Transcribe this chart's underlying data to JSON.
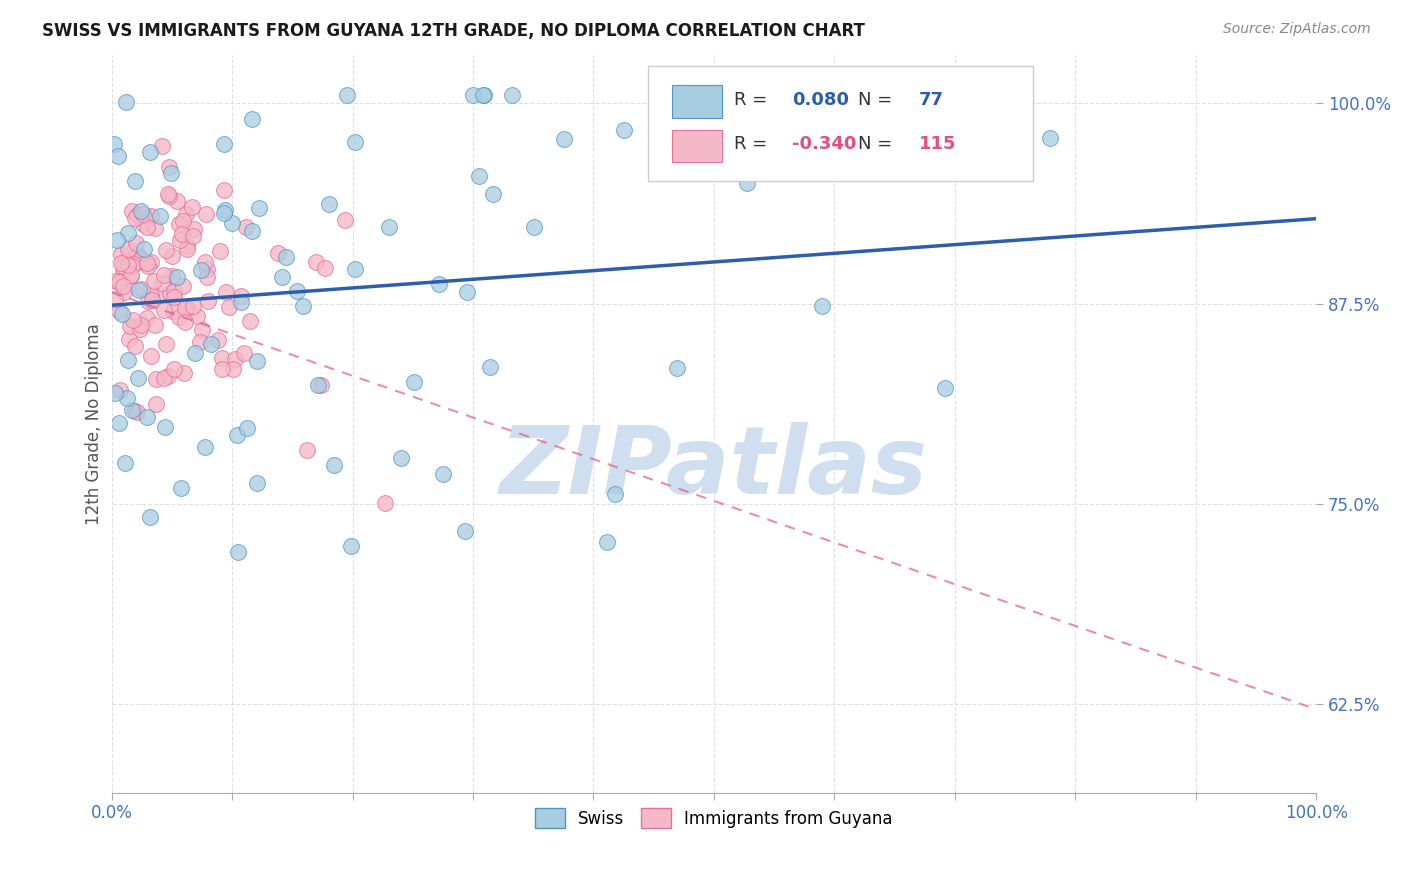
{
  "title": "SWISS VS IMMIGRANTS FROM GUYANA 12TH GRADE, NO DIPLOMA CORRELATION CHART",
  "source": "Source: ZipAtlas.com",
  "ylabel": "12th Grade, No Diploma",
  "xlim": [
    0.0,
    1.0
  ],
  "ylim": [
    0.57,
    1.03
  ],
  "yticks": [
    0.625,
    0.75,
    0.875,
    1.0
  ],
  "ytick_labels": [
    "62.5%",
    "75.0%",
    "87.5%",
    "100.0%"
  ],
  "xticks": [
    0.0,
    0.1,
    0.2,
    0.3,
    0.4,
    0.5,
    0.6,
    0.7,
    0.8,
    0.9,
    1.0
  ],
  "xtick_labels_show": {
    "0.0": "0.0%",
    "1.0": "100.0%"
  },
  "swiss_R": 0.08,
  "swiss_N": 77,
  "guyana_R": -0.34,
  "guyana_N": 115,
  "swiss_color": "#a8cce0",
  "swiss_edge_color": "#4d94c8",
  "guyana_color": "#f4b8c8",
  "guyana_edge_color": "#e87098",
  "trend_swiss_color": "#2b5fad",
  "trend_guyana_color": "#e05080",
  "watermark_text": "ZIPatlas",
  "watermark_color": "#d0dff0",
  "background_color": "#ffffff",
  "grid_color": "#e0e0e0",
  "axis_label_color": "#4472c4",
  "title_color": "#1a1a1a",
  "source_color": "#888888",
  "ylabel_color": "#555555",
  "swiss_line_x": [
    0.0,
    1.0
  ],
  "swiss_line_y": [
    0.874,
    0.928
  ],
  "guyana_line_x": [
    0.0,
    1.0
  ],
  "guyana_line_y": [
    0.882,
    0.622
  ]
}
